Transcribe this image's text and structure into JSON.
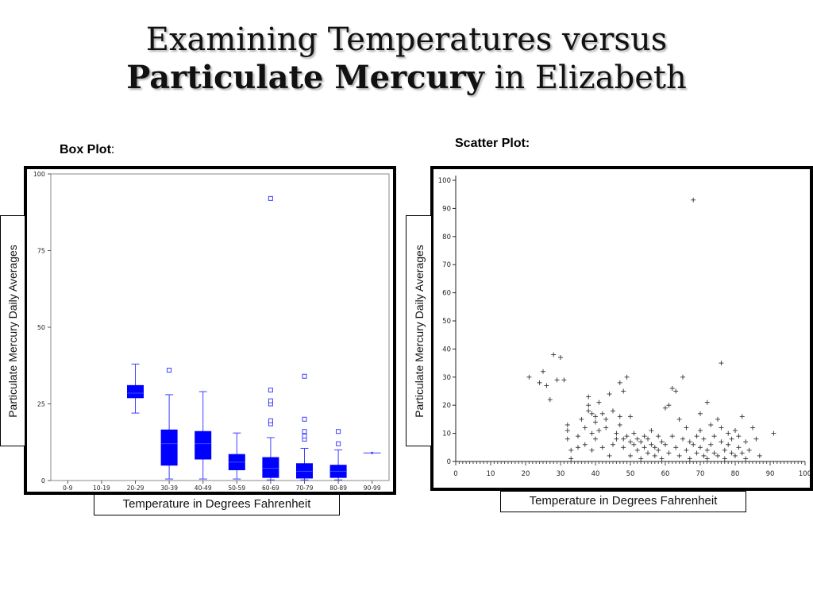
{
  "slide": {
    "title_line1": "Examining Temperatures versus",
    "title_line2_bold": "Particulate Mercury",
    "title_line2_rest": " in Elizabeth",
    "box_label_bold": "Box Plot",
    "box_label_colon": ":",
    "scatter_label": "Scatter Plot:",
    "ylabel": "Particulate Mercury Daily Averages",
    "xlabel": "Temperature in Degrees Fahrenheit"
  },
  "colors": {
    "box_fill": "#0000ff",
    "box_line": "#4040ff",
    "scatter_mark": "#333333"
  },
  "chart_data": [
    {
      "type": "box",
      "ylim": [
        0,
        100
      ],
      "yticks": [
        0,
        25,
        50,
        75,
        100
      ],
      "categories": [
        "0-9",
        "10-19",
        "20-29",
        "30-39",
        "40-49",
        "50-59",
        "60-69",
        "70-79",
        "80-89",
        "90-99"
      ],
      "boxes": [
        {
          "category": "20-29",
          "min": 22,
          "q1": 27,
          "median": 28.5,
          "q3": 31,
          "max": 38,
          "outliers": []
        },
        {
          "category": "30-39",
          "min": 0.5,
          "q1": 5,
          "median": 12,
          "q3": 16.5,
          "max": 28,
          "outliers": [
            36
          ]
        },
        {
          "category": "40-49",
          "min": 0.5,
          "q1": 7,
          "median": 12,
          "q3": 16,
          "max": 29,
          "outliers": []
        },
        {
          "category": "50-59",
          "min": 0.5,
          "q1": 3.5,
          "median": 6,
          "q3": 8.5,
          "max": 15.5,
          "outliers": []
        },
        {
          "category": "60-69",
          "min": 0.2,
          "q1": 1,
          "median": 4,
          "q3": 7.5,
          "max": 14,
          "outliers": [
            18.5,
            19.5,
            25,
            26,
            29.5,
            92
          ]
        },
        {
          "category": "70-79",
          "min": 0.2,
          "q1": 0.8,
          "median": 3,
          "q3": 5.5,
          "max": 10.5,
          "outliers": [
            13.5,
            14.5,
            16,
            20,
            34
          ]
        },
        {
          "category": "80-89",
          "min": 0.2,
          "q1": 1,
          "median": 3,
          "q3": 5,
          "max": 10,
          "outliers": [
            12,
            16
          ]
        },
        {
          "category": "90-99",
          "min": 9,
          "q1": 9,
          "median": 9,
          "q3": 9,
          "max": 9,
          "outliers": []
        }
      ]
    },
    {
      "type": "scatter",
      "xlim": [
        0,
        100
      ],
      "ylim": [
        0,
        100
      ],
      "xticks": [
        0,
        10,
        20,
        30,
        40,
        50,
        60,
        70,
        80,
        90,
        100
      ],
      "yticks": [
        0,
        10,
        20,
        30,
        40,
        50,
        60,
        70,
        80,
        90,
        100
      ],
      "marker": "+",
      "points": [
        [
          21,
          30
        ],
        [
          24,
          28
        ],
        [
          25,
          32
        ],
        [
          26,
          27
        ],
        [
          27,
          22
        ],
        [
          28,
          38
        ],
        [
          29,
          29
        ],
        [
          30,
          37
        ],
        [
          31,
          29
        ],
        [
          32,
          13
        ],
        [
          32,
          11
        ],
        [
          32,
          8
        ],
        [
          33,
          4
        ],
        [
          33,
          1
        ],
        [
          35,
          9
        ],
        [
          35,
          5
        ],
        [
          36,
          15
        ],
        [
          37,
          12
        ],
        [
          37,
          6
        ],
        [
          38,
          23
        ],
        [
          38,
          20
        ],
        [
          38,
          18
        ],
        [
          39,
          17
        ],
        [
          39,
          10
        ],
        [
          39,
          4
        ],
        [
          40,
          16
        ],
        [
          40,
          14
        ],
        [
          40,
          8
        ],
        [
          41,
          21
        ],
        [
          41,
          11
        ],
        [
          42,
          5
        ],
        [
          42,
          17
        ],
        [
          43,
          15
        ],
        [
          43,
          12
        ],
        [
          44,
          24
        ],
        [
          44,
          2
        ],
        [
          45,
          18
        ],
        [
          45,
          6
        ],
        [
          46,
          10
        ],
        [
          46,
          8
        ],
        [
          47,
          28
        ],
        [
          47,
          16
        ],
        [
          47,
          13
        ],
        [
          48,
          25
        ],
        [
          48,
          8
        ],
        [
          48,
          5
        ],
        [
          49,
          30
        ],
        [
          49,
          9
        ],
        [
          50,
          16
        ],
        [
          50,
          7
        ],
        [
          50,
          2
        ],
        [
          51,
          10
        ],
        [
          51,
          6
        ],
        [
          52,
          8
        ],
        [
          52,
          4
        ],
        [
          53,
          7
        ],
        [
          53,
          1
        ],
        [
          54,
          5
        ],
        [
          54,
          9
        ],
        [
          55,
          8
        ],
        [
          55,
          3
        ],
        [
          56,
          11
        ],
        [
          56,
          6
        ],
        [
          57,
          5
        ],
        [
          57,
          2
        ],
        [
          58,
          9
        ],
        [
          58,
          4
        ],
        [
          59,
          7
        ],
        [
          59,
          1
        ],
        [
          60,
          19
        ],
        [
          60,
          6
        ],
        [
          61,
          20
        ],
        [
          61,
          3
        ],
        [
          62,
          26
        ],
        [
          62,
          9
        ],
        [
          63,
          25
        ],
        [
          63,
          5
        ],
        [
          64,
          15
        ],
        [
          64,
          2
        ],
        [
          65,
          30
        ],
        [
          65,
          8
        ],
        [
          66,
          12
        ],
        [
          66,
          4
        ],
        [
          67,
          7
        ],
        [
          67,
          1
        ],
        [
          68,
          93
        ],
        [
          68,
          6
        ],
        [
          69,
          9
        ],
        [
          69,
          3
        ],
        [
          70,
          17
        ],
        [
          70,
          11
        ],
        [
          70,
          5
        ],
        [
          71,
          2
        ],
        [
          71,
          8
        ],
        [
          72,
          21
        ],
        [
          72,
          4
        ],
        [
          72,
          1
        ],
        [
          73,
          13
        ],
        [
          73,
          6
        ],
        [
          74,
          9
        ],
        [
          74,
          3
        ],
        [
          75,
          15
        ],
        [
          75,
          2
        ],
        [
          76,
          35
        ],
        [
          76,
          12
        ],
        [
          76,
          7
        ],
        [
          77,
          4
        ],
        [
          77,
          1
        ],
        [
          78,
          10
        ],
        [
          78,
          6
        ],
        [
          79,
          3
        ],
        [
          79,
          8
        ],
        [
          80,
          11
        ],
        [
          80,
          2
        ],
        [
          81,
          5
        ],
        [
          81,
          9
        ],
        [
          82,
          16
        ],
        [
          82,
          3
        ],
        [
          83,
          7
        ],
        [
          83,
          1
        ],
        [
          84,
          4
        ],
        [
          85,
          12
        ],
        [
          86,
          8
        ],
        [
          87,
          2
        ],
        [
          91,
          10
        ]
      ]
    }
  ]
}
